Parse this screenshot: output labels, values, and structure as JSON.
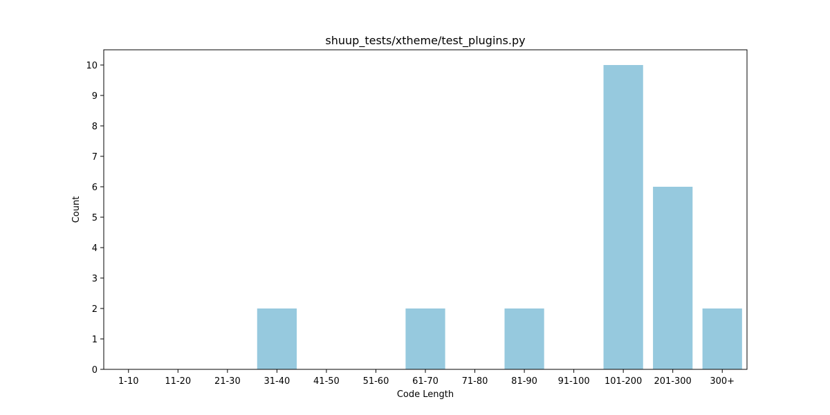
{
  "chart_data": {
    "type": "bar",
    "title": "shuup_tests/xtheme/test_plugins.py",
    "xlabel": "Code Length",
    "ylabel": "Count",
    "categories": [
      "1-10",
      "11-20",
      "21-30",
      "31-40",
      "41-50",
      "51-60",
      "61-70",
      "71-80",
      "81-90",
      "91-100",
      "101-200",
      "201-300",
      "300+"
    ],
    "values": [
      0,
      0,
      0,
      2,
      0,
      0,
      2,
      0,
      2,
      0,
      10,
      6,
      2
    ],
    "ylim": [
      0,
      10.5
    ],
    "yticks": [
      0,
      1,
      2,
      3,
      4,
      5,
      6,
      7,
      8,
      9,
      10
    ],
    "grid": false,
    "bar_color": "#96c9de"
  }
}
